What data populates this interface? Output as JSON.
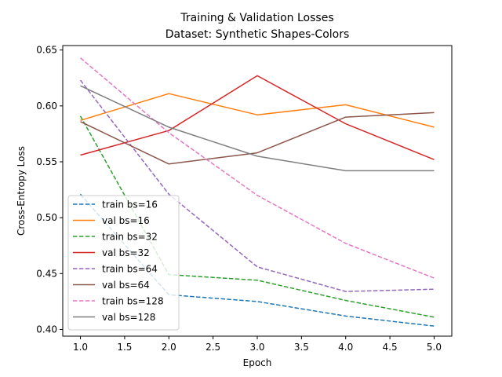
{
  "chart_data": {
    "type": "line",
    "title_line1": "Training & Validation Losses",
    "title_line2": "Dataset: Synthetic Shapes-Colors",
    "xlabel": "Epoch",
    "ylabel": "Cross-Entropy Loss",
    "xlim": [
      0.8,
      5.2
    ],
    "ylim": [
      0.394,
      0.654
    ],
    "xticks": [
      "1.0",
      "1.5",
      "2.0",
      "2.5",
      "3.0",
      "3.5",
      "4.0",
      "4.5",
      "5.0"
    ],
    "yticks": [
      "0.40",
      "0.45",
      "0.50",
      "0.55",
      "0.60",
      "0.65"
    ],
    "grid": false,
    "legend_position": "lower-left",
    "x": [
      1,
      2,
      3,
      4,
      5
    ],
    "series": [
      {
        "name": "train bs=16",
        "color": "#1f77b4",
        "dashed": true,
        "values": [
          0.521,
          0.431,
          0.425,
          0.412,
          0.403
        ]
      },
      {
        "name": "val bs=16",
        "color": "#ff7f0e",
        "dashed": false,
        "values": [
          0.587,
          0.611,
          0.592,
          0.601,
          0.581
        ]
      },
      {
        "name": "train bs=32",
        "color": "#2ca02c",
        "dashed": true,
        "values": [
          0.591,
          0.449,
          0.444,
          0.426,
          0.411
        ]
      },
      {
        "name": "val bs=32",
        "color": "#d62728",
        "dashed": false,
        "values": [
          0.556,
          0.578,
          0.627,
          0.584,
          0.552
        ]
      },
      {
        "name": "train bs=64",
        "color": "#9467bd",
        "dashed": true,
        "values": [
          0.623,
          0.521,
          0.456,
          0.434,
          0.436
        ]
      },
      {
        "name": "val bs=64",
        "color": "#8c564b",
        "dashed": false,
        "values": [
          0.586,
          0.548,
          0.558,
          0.59,
          0.594
        ]
      },
      {
        "name": "train bs=128",
        "color": "#e377c2",
        "dashed": true,
        "values": [
          0.643,
          0.576,
          0.52,
          0.477,
          0.446
        ]
      },
      {
        "name": "val bs=128",
        "color": "#7f7f7f",
        "dashed": false,
        "values": [
          0.618,
          0.581,
          0.555,
          0.542,
          0.542
        ]
      }
    ]
  }
}
